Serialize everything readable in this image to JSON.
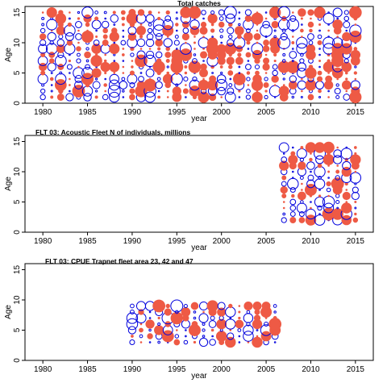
{
  "colors": {
    "positive_fill": "#ee5a45",
    "negative_stroke": "#0000dd",
    "frame": "#000000",
    "background": "#ffffff"
  },
  "chart_data": [
    {
      "type": "scatter",
      "style": "bubble",
      "title": "Total catches",
      "xlabel": "year",
      "ylabel": "Age",
      "xlim": [
        1978,
        2017
      ],
      "ylim": [
        0,
        16
      ],
      "x_ticks": [
        "1980",
        "1985",
        "1990",
        "1995",
        "2000",
        "2005",
        "2010",
        "2015"
      ],
      "y_ticks": [
        "0",
        "5",
        "10",
        "15"
      ],
      "years": [
        1980,
        2015
      ],
      "ages": [
        1,
        15
      ],
      "legend": false,
      "residual_pattern_seed": 11,
      "encoding": "residuals by year and age: filled red circle = positive, open blue circle = negative; circle size = magnitude"
    },
    {
      "type": "scatter",
      "style": "bubble",
      "title": "FLT 03: Acoustic Fleet   N of individuals, millions",
      "xlabel": "year",
      "ylabel": "Age",
      "xlim": [
        1978,
        2017
      ],
      "ylim": [
        0,
        16
      ],
      "x_ticks": [
        "1980",
        "1985",
        "1990",
        "1995",
        "2000",
        "2005",
        "2010",
        "2015"
      ],
      "y_ticks": [
        "0",
        "5",
        "10",
        "15"
      ],
      "years": [
        2007,
        2015
      ],
      "ages": [
        2,
        14
      ],
      "legend": false,
      "residual_pattern_seed": 23,
      "encoding": "residuals by year and age: filled red circle = positive, open blue circle = negative; circle size = magnitude"
    },
    {
      "type": "scatter",
      "style": "bubble",
      "title": "FLT 03: CPUE Trapnet fleet area 23, 42 and 47",
      "xlabel": "year",
      "ylabel": "Age",
      "xlim": [
        1978,
        2017
      ],
      "ylim": [
        0,
        16
      ],
      "x_ticks": [
        "1980",
        "1985",
        "1990",
        "1995",
        "2000",
        "2005",
        "2010",
        "2015"
      ],
      "y_ticks": [
        "0",
        "5",
        "10",
        "15"
      ],
      "years": [
        1990,
        2006
      ],
      "ages": [
        3,
        9
      ],
      "legend": false,
      "residual_pattern_seed": 37,
      "encoding": "residuals by year and age: filled red circle = positive, open blue circle = negative; circle size = magnitude"
    }
  ]
}
